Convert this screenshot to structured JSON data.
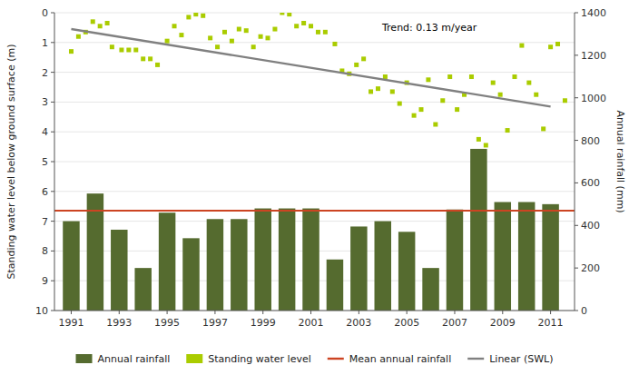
{
  "chart_data": {
    "type": "bar",
    "ylabel": "Standing water level below ground surface (m)",
    "y2label": "Annual rainfall (mm)",
    "annotation": "Trend: 0.13 m/year",
    "xlim": [
      1990.3,
      2012.0
    ],
    "xticks": [
      1991,
      1993,
      1995,
      1997,
      1999,
      2001,
      2003,
      2005,
      2007,
      2009,
      2011
    ],
    "ylim": [
      10.0,
      0.0
    ],
    "yticks": [
      0,
      1,
      2,
      3,
      4,
      5,
      6,
      7,
      8,
      9,
      10
    ],
    "y2lim": [
      0,
      1400
    ],
    "y2ticks": [
      0,
      200,
      400,
      600,
      800,
      1000,
      1200,
      1400
    ],
    "grid": true,
    "legend": "bottom",
    "series": [
      {
        "name": "Annual rainfall",
        "type": "bar",
        "axis": "y2",
        "color": "#556B2F",
        "x": [
          1991,
          1992,
          1993,
          1994,
          1995,
          1996,
          1997,
          1998,
          1999,
          2000,
          2001,
          2002,
          2003,
          2004,
          2005,
          2006,
          2007,
          2008,
          2009,
          2010,
          2011
        ],
        "values": [
          420,
          550,
          380,
          200,
          460,
          340,
          430,
          430,
          480,
          480,
          480,
          240,
          395,
          420,
          370,
          200,
          475,
          760,
          510,
          510,
          500
        ]
      },
      {
        "name": "Standing water level",
        "type": "scatter",
        "color": "#AACC00",
        "marker": "square",
        "x": [
          1991.0,
          1991.3,
          1991.6,
          1991.9,
          1992.2,
          1992.5,
          1992.7,
          1993.1,
          1993.4,
          1993.7,
          1994.0,
          1994.3,
          1994.6,
          1995.0,
          1995.3,
          1995.6,
          1995.9,
          1996.2,
          1996.5,
          1996.8,
          1997.1,
          1997.4,
          1997.7,
          1998.0,
          1998.3,
          1998.6,
          1998.9,
          1999.2,
          1999.5,
          1999.8,
          2000.1,
          2000.4,
          2000.7,
          2001.0,
          2001.3,
          2001.6,
          2002.0,
          2002.3,
          2002.6,
          2002.9,
          2003.2,
          2003.5,
          2003.8,
          2004.1,
          2004.4,
          2004.7,
          2005.0,
          2005.3,
          2005.6,
          2005.9,
          2006.2,
          2006.5,
          2006.8,
          2007.1,
          2007.4,
          2007.7,
          2008.0,
          2008.3,
          2008.6,
          2008.9,
          2009.2,
          2009.5,
          2009.8,
          2010.1,
          2010.4,
          2010.7,
          2011.0,
          2011.3,
          2011.6
        ],
        "values": [
          1.3,
          0.8,
          0.65,
          0.3,
          0.45,
          0.35,
          1.15,
          1.25,
          1.25,
          1.25,
          1.55,
          1.55,
          1.75,
          0.95,
          0.45,
          0.75,
          0.15,
          0.05,
          0.1,
          0.85,
          1.15,
          0.65,
          0.95,
          0.55,
          0.6,
          1.15,
          0.8,
          0.85,
          0.55,
          0.0,
          0.05,
          0.45,
          0.35,
          0.45,
          0.65,
          0.65,
          1.05,
          1.95,
          2.05,
          1.75,
          1.55,
          2.65,
          2.55,
          2.15,
          2.65,
          3.05,
          2.35,
          3.45,
          3.25,
          2.25,
          3.75,
          2.95,
          2.15,
          3.25,
          2.75,
          2.15,
          4.25,
          4.45,
          2.35,
          2.75,
          3.95,
          2.15,
          1.1,
          2.35,
          2.75,
          3.9,
          1.15,
          1.05,
          2.95
        ]
      },
      {
        "name": "Mean annual rainfall",
        "type": "hline",
        "axis": "y2",
        "color": "#CC4422",
        "values": [
          470
        ]
      },
      {
        "name": "Linear (SWL)",
        "type": "line",
        "color": "#808080",
        "x": [
          1991,
          2011
        ],
        "values": [
          0.55,
          3.15
        ]
      }
    ]
  }
}
